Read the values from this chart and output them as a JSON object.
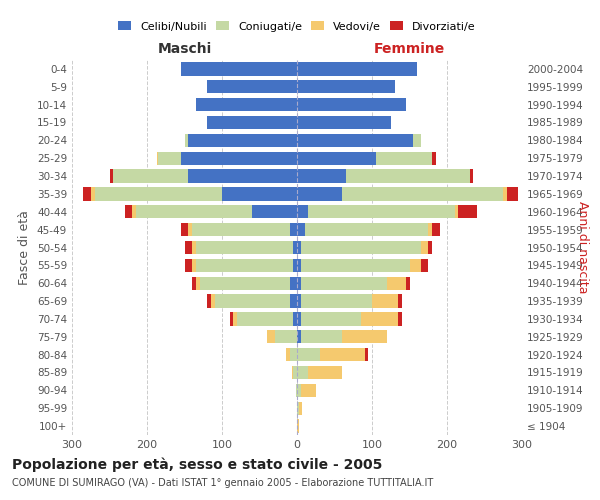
{
  "age_groups": [
    "100+",
    "95-99",
    "90-94",
    "85-89",
    "80-84",
    "75-79",
    "70-74",
    "65-69",
    "60-64",
    "55-59",
    "50-54",
    "45-49",
    "40-44",
    "35-39",
    "30-34",
    "25-29",
    "20-24",
    "15-19",
    "10-14",
    "5-9",
    "0-4"
  ],
  "birth_years": [
    "≤ 1904",
    "1905-1909",
    "1910-1914",
    "1915-1919",
    "1920-1924",
    "1925-1929",
    "1930-1934",
    "1935-1939",
    "1940-1944",
    "1945-1949",
    "1950-1954",
    "1955-1959",
    "1960-1964",
    "1965-1969",
    "1970-1974",
    "1975-1979",
    "1980-1984",
    "1985-1989",
    "1990-1994",
    "1995-1999",
    "2000-2004"
  ],
  "male": {
    "celibe": [
      0,
      0,
      0,
      0,
      0,
      0,
      5,
      10,
      10,
      5,
      5,
      10,
      60,
      100,
      145,
      155,
      145,
      120,
      135,
      120,
      155
    ],
    "coniugato": [
      0,
      0,
      2,
      5,
      10,
      30,
      75,
      100,
      120,
      130,
      130,
      130,
      155,
      170,
      100,
      30,
      5,
      0,
      0,
      0,
      0
    ],
    "vedovo": [
      0,
      0,
      0,
      2,
      5,
      10,
      5,
      5,
      5,
      5,
      5,
      5,
      5,
      5,
      0,
      2,
      0,
      0,
      0,
      0,
      0
    ],
    "divorziato": [
      0,
      0,
      0,
      0,
      0,
      0,
      5,
      5,
      5,
      10,
      10,
      10,
      10,
      10,
      5,
      0,
      0,
      0,
      0,
      0,
      0
    ]
  },
  "female": {
    "nubile": [
      0,
      0,
      0,
      0,
      0,
      5,
      5,
      5,
      5,
      5,
      5,
      10,
      15,
      60,
      65,
      105,
      155,
      125,
      145,
      130,
      160
    ],
    "coniugata": [
      0,
      2,
      5,
      15,
      30,
      55,
      80,
      95,
      115,
      145,
      160,
      165,
      195,
      215,
      165,
      75,
      10,
      0,
      0,
      0,
      0
    ],
    "vedova": [
      2,
      5,
      20,
      45,
      60,
      60,
      50,
      35,
      25,
      15,
      10,
      5,
      5,
      5,
      0,
      0,
      0,
      0,
      0,
      0,
      0
    ],
    "divorziata": [
      0,
      0,
      0,
      0,
      5,
      0,
      5,
      5,
      5,
      10,
      5,
      10,
      25,
      15,
      5,
      5,
      0,
      0,
      0,
      0,
      0
    ]
  },
  "colors": {
    "celibe": "#4472C4",
    "coniugato": "#C5D9A4",
    "vedovo": "#F5C96E",
    "divorziato": "#CC2222"
  },
  "legend_labels": [
    "Celibi/Nubili",
    "Coniugati/e",
    "Vedovi/e",
    "Divorziati/e"
  ],
  "title": "Popolazione per età, sesso e stato civile - 2005",
  "subtitle": "COMUNE DI SUMIRAGO (VA) - Dati ISTAT 1° gennaio 2005 - Elaborazione TUTTITALIA.IT",
  "xlabel_left": "Maschi",
  "xlabel_right": "Femmine",
  "ylabel_left": "Fasce di età",
  "ylabel_right": "Anni di nascita",
  "xlim": 300,
  "bg_color": "#ffffff",
  "grid_color": "#cccccc"
}
